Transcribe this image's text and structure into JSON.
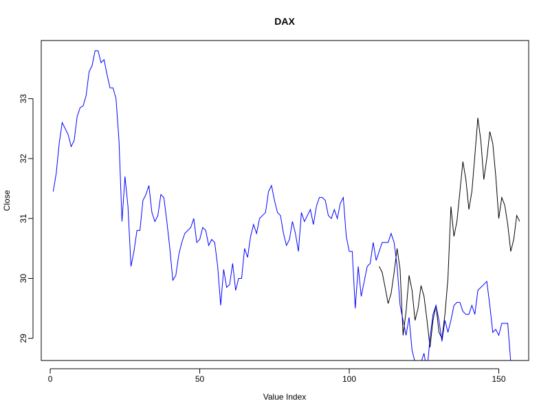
{
  "chart_data": {
    "type": "line",
    "title": "DAX",
    "xlabel": "Value Index",
    "ylabel": "Close",
    "xlim": [
      -3,
      160
    ],
    "ylim": [
      28.63,
      33.97
    ],
    "x_ticks": [
      0,
      50,
      100,
      150
    ],
    "y_ticks": [
      29,
      30,
      31,
      32,
      33
    ],
    "grid": false,
    "legend": "none",
    "colors": {
      "actual": "#000000",
      "fitted": "#0000ff"
    },
    "series": [
      {
        "color": "#000000",
        "x": [
          110,
          111,
          112,
          113,
          114,
          115,
          116,
          117,
          118,
          119,
          120,
          121,
          122,
          123,
          124,
          125,
          126,
          127,
          128,
          129,
          130,
          131,
          132,
          133,
          134,
          135,
          136,
          137,
          138,
          139,
          140,
          141,
          142,
          143,
          144,
          145,
          146,
          147,
          148,
          149,
          150,
          151,
          152,
          153,
          154,
          155,
          156,
          157
        ],
        "values": [
          30.2,
          30.1,
          29.85,
          29.58,
          29.75,
          30.1,
          30.5,
          30.15,
          29.05,
          29.45,
          30.05,
          29.8,
          29.3,
          29.5,
          29.88,
          29.7,
          29.3,
          28.85,
          29.3,
          29.55,
          29.1,
          29.0,
          29.4,
          30.0,
          31.2,
          30.7,
          30.95,
          31.45,
          31.95,
          31.65,
          31.15,
          31.45,
          32.05,
          32.68,
          32.3,
          31.65,
          32.0,
          32.45,
          32.25,
          31.7,
          31.0,
          31.35,
          31.22,
          30.9,
          30.45,
          30.65,
          31.05,
          30.95
        ]
      },
      {
        "color": "#0000ff",
        "x": [
          1,
          2,
          3,
          4,
          5,
          6,
          7,
          8,
          9,
          10,
          11,
          12,
          13,
          14,
          15,
          16,
          17,
          18,
          19,
          20,
          21,
          22,
          23,
          24,
          25,
          26,
          27,
          28,
          29,
          30,
          31,
          32,
          33,
          34,
          35,
          36,
          37,
          38,
          39,
          40,
          41,
          42,
          43,
          44,
          45,
          46,
          47,
          48,
          49,
          50,
          51,
          52,
          53,
          54,
          55,
          56,
          57,
          58,
          59,
          60,
          61,
          62,
          63,
          64,
          65,
          66,
          67,
          68,
          69,
          70,
          71,
          72,
          73,
          74,
          75,
          76,
          77,
          78,
          79,
          80,
          81,
          82,
          83,
          84,
          85,
          86,
          87,
          88,
          89,
          90,
          91,
          92,
          93,
          94,
          95,
          96,
          97,
          98,
          99,
          100,
          101,
          102,
          103,
          104,
          105,
          106,
          107,
          108,
          109,
          110,
          111,
          112,
          113,
          114,
          115,
          116,
          117,
          118,
          119,
          120,
          121,
          122,
          123,
          124,
          125,
          126,
          127,
          128,
          129,
          130,
          131,
          132,
          133,
          134,
          135,
          136,
          137,
          138,
          139,
          140,
          141,
          142,
          143,
          144,
          145,
          146,
          147,
          148,
          149,
          150,
          151,
          152,
          153,
          154
        ],
        "values": [
          31.45,
          31.75,
          32.25,
          32.6,
          32.5,
          32.4,
          32.2,
          32.3,
          32.7,
          32.85,
          32.88,
          33.05,
          33.45,
          33.55,
          33.8,
          33.8,
          33.6,
          33.65,
          33.4,
          33.18,
          33.18,
          33.0,
          32.3,
          30.95,
          31.7,
          31.2,
          30.2,
          30.45,
          30.8,
          30.8,
          31.3,
          31.4,
          31.55,
          31.1,
          30.95,
          31.05,
          31.4,
          31.35,
          30.95,
          30.5,
          29.97,
          30.05,
          30.4,
          30.6,
          30.75,
          30.8,
          30.85,
          31.0,
          30.6,
          30.65,
          30.85,
          30.8,
          30.55,
          30.65,
          30.6,
          30.2,
          29.55,
          30.15,
          29.85,
          29.9,
          30.25,
          29.8,
          30.0,
          30.0,
          30.5,
          30.35,
          30.7,
          30.9,
          30.75,
          31.0,
          31.05,
          31.1,
          31.45,
          31.55,
          31.3,
          31.1,
          31.05,
          30.75,
          30.55,
          30.65,
          30.95,
          30.75,
          30.45,
          31.1,
          30.95,
          31.05,
          31.15,
          30.9,
          31.2,
          31.35,
          31.35,
          31.3,
          31.05,
          31.0,
          31.15,
          31.0,
          31.25,
          31.35,
          30.7,
          30.45,
          30.45,
          29.5,
          30.2,
          29.7,
          29.95,
          30.2,
          30.25,
          30.6,
          30.3,
          30.45,
          30.6,
          30.6,
          30.6,
          30.75,
          30.6,
          30.2,
          29.55,
          29.3,
          29.05,
          29.35,
          28.8,
          28.6,
          28.5,
          28.6,
          28.75,
          28.45,
          29.0,
          29.4,
          29.55,
          29.3,
          28.95,
          29.3,
          29.1,
          29.3,
          29.55,
          29.6,
          29.6,
          29.45,
          29.4,
          29.4,
          29.55,
          29.4,
          29.8,
          29.85,
          29.9,
          29.95,
          29.55,
          29.1,
          29.15,
          29.05,
          29.25,
          29.25,
          29.25,
          28.6
        ]
      }
    ]
  }
}
